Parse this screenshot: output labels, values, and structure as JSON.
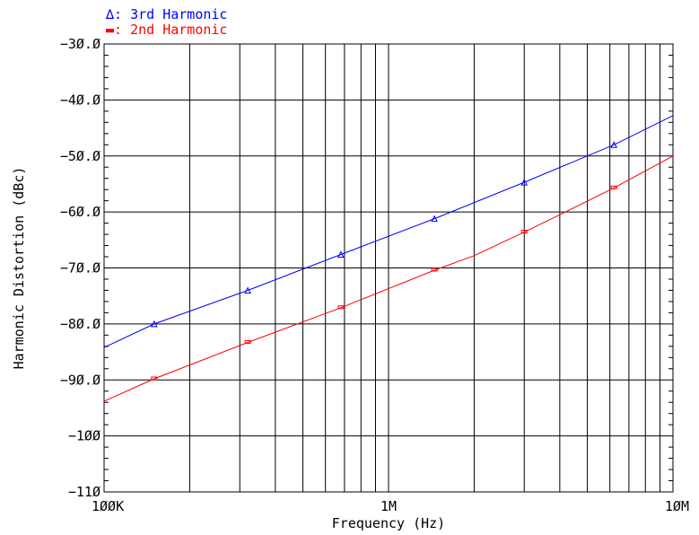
{
  "chart_data": {
    "type": "line",
    "xscale": "log",
    "xlim": [
      100000,
      10000000
    ],
    "ylim": [
      -110,
      -30
    ],
    "xlabel": "Frequency (Hz)",
    "ylabel": "Harmonic Distortion (dBc)",
    "grid": true,
    "x_ticks": [
      {
        "value": 100000,
        "label": "100K"
      },
      {
        "value": 1000000,
        "label": "1M"
      },
      {
        "value": 10000000,
        "label": "10M"
      }
    ],
    "y_ticks": [
      {
        "value": -30,
        "label": "−30.0"
      },
      {
        "value": -40,
        "label": "−40.0"
      },
      {
        "value": -50,
        "label": "−50.0"
      },
      {
        "value": -60,
        "label": "−60.0"
      },
      {
        "value": -70,
        "label": "−70.0"
      },
      {
        "value": -80,
        "label": "−80.0"
      },
      {
        "value": -90,
        "label": "−90.0"
      },
      {
        "value": -100,
        "label": "−100"
      },
      {
        "value": -110,
        "label": "−110"
      }
    ],
    "legend_placement": "top-left",
    "series": [
      {
        "name": "3rd Harmonic",
        "legend_label": "∆: 3rd Harmonic",
        "marker": "triangle",
        "color": "#0000ff",
        "x": [
          100000,
          150000,
          320000,
          680000,
          1450000,
          3000000,
          6200000,
          10000000
        ],
        "y": [
          -84.2,
          -80.0,
          -74.0,
          -67.6,
          -61.2,
          -54.7,
          -48.0,
          -42.8
        ],
        "marker_x": [
          150000,
          320000,
          680000,
          1450000,
          3000000,
          6200000
        ]
      },
      {
        "name": "2nd Harmonic",
        "legend_label": "▬: 2nd Harmonic",
        "marker": "rect",
        "color": "#ff0000",
        "x": [
          100000,
          150000,
          320000,
          680000,
          1450000,
          2000000,
          3000000,
          4000000,
          6200000,
          10000000
        ],
        "y": [
          -93.8,
          -89.8,
          -83.3,
          -77.1,
          -70.4,
          -67.8,
          -63.6,
          -60.5,
          -55.7,
          -50.0
        ],
        "marker_x": [
          150000,
          320000,
          680000,
          1450000,
          3000000,
          6200000
        ]
      }
    ]
  }
}
